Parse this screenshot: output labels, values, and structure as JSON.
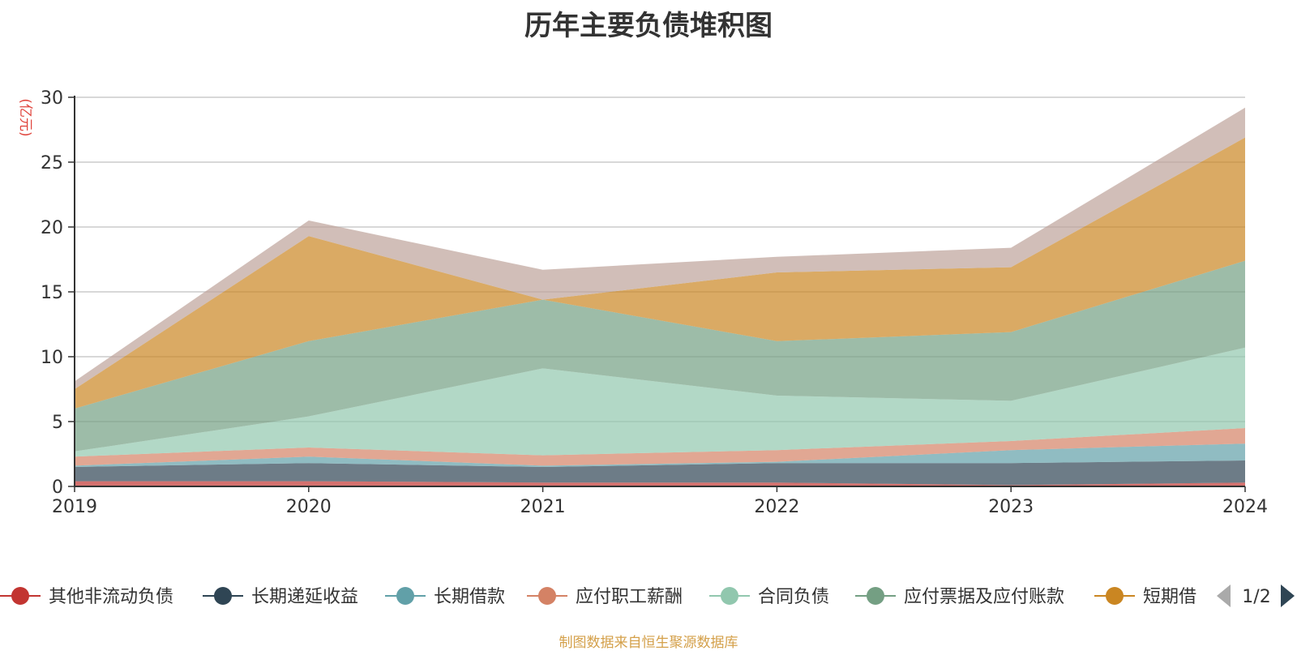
{
  "title": "历年主要负债堆积图",
  "source_note": "制图数据来自恒生聚源数据库",
  "legend_page": "1/2",
  "chart_data": {
    "type": "area",
    "stacked": true,
    "title": "历年主要负债堆积图",
    "ylabel": "(亿元)",
    "x": [
      "2019",
      "2020",
      "2021",
      "2022",
      "2023",
      "2024"
    ],
    "ylim": [
      0,
      30
    ],
    "yticks": [
      0,
      5,
      10,
      15,
      20,
      25,
      30
    ],
    "grid": true,
    "legend_position": "bottom",
    "series": [
      {
        "name": "其他非流动负债",
        "color": "#c23531",
        "values": [
          0.4,
          0.4,
          0.3,
          0.3,
          0.1,
          0.3
        ]
      },
      {
        "name": "长期递延收益",
        "color": "#2f4554",
        "values": [
          1.1,
          1.4,
          1.2,
          1.5,
          1.7,
          1.7
        ]
      },
      {
        "name": "长期借款",
        "color": "#61a0a8",
        "values": [
          0.1,
          0.5,
          0.1,
          0.1,
          1.0,
          1.3
        ]
      },
      {
        "name": "应付职工薪酬",
        "color": "#d48265",
        "values": [
          0.7,
          0.7,
          0.8,
          0.9,
          0.7,
          1.2
        ]
      },
      {
        "name": "合同负债",
        "color": "#91c7ae",
        "values": [
          0.4,
          2.4,
          6.7,
          4.2,
          3.1,
          6.2
        ]
      },
      {
        "name": "应付票据及应付账款",
        "color": "#749f83",
        "values": [
          3.3,
          5.8,
          5.3,
          4.2,
          5.3,
          6.7
        ]
      },
      {
        "name": "短期借",
        "color": "#ca8622",
        "values": [
          1.5,
          8.1,
          0.0,
          5.3,
          5.0,
          9.5
        ]
      },
      {
        "name": "",
        "color": "#bda29a",
        "values": [
          0.6,
          1.2,
          2.3,
          1.2,
          1.5,
          2.3
        ]
      }
    ]
  }
}
